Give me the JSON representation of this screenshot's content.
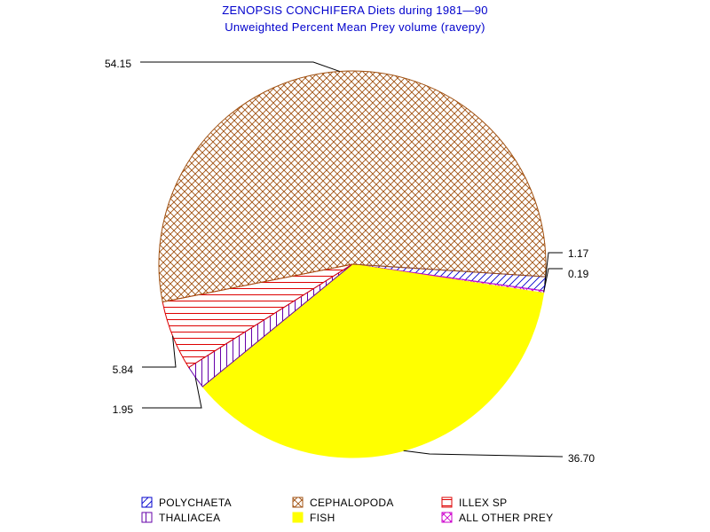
{
  "chart_data": {
    "type": "pie",
    "title": "ZENOPSIS CONCHIFERA Diets during 1981—90",
    "subtitle": "Unweighted Percent Mean Prey volume (ravepy)",
    "slices": [
      {
        "name": "POLYCHAETA",
        "value": 1.17,
        "label": "1.17",
        "color": "#0000cc",
        "pattern": "diag-right"
      },
      {
        "name": "ALL OTHER PREY",
        "value": 0.19,
        "label": "0.19",
        "color": "#cc00cc",
        "pattern": "crosshatch"
      },
      {
        "name": "FISH",
        "value": 36.7,
        "label": "36.70",
        "color": "#ffff00",
        "pattern": "solid"
      },
      {
        "name": "THALIACEA",
        "value": 1.95,
        "label": "1.95",
        "color": "#6600aa",
        "pattern": "vertical"
      },
      {
        "name": "ILLEX SP",
        "value": 5.84,
        "label": "5.84",
        "color": "#dd0000",
        "pattern": "horizontal"
      },
      {
        "name": "CEPHALOPODA",
        "value": 54.15,
        "label": "54.15",
        "color": "#a05010",
        "pattern": "crosshatch"
      }
    ],
    "legend": {
      "placement": "bottom",
      "items": [
        {
          "name": "POLYCHAETA",
          "color": "#0000cc",
          "pattern": "diag-right"
        },
        {
          "name": "CEPHALOPODA",
          "color": "#a05010",
          "pattern": "crosshatch"
        },
        {
          "name": "ILLEX SP",
          "color": "#dd0000",
          "pattern": "horizontal"
        },
        {
          "name": "THALIACEA",
          "color": "#6600aa",
          "pattern": "vertical"
        },
        {
          "name": "FISH",
          "color": "#ffff00",
          "pattern": "solid"
        },
        {
          "name": "ALL OTHER PREY",
          "color": "#cc00cc",
          "pattern": "crosshatch"
        }
      ]
    }
  }
}
